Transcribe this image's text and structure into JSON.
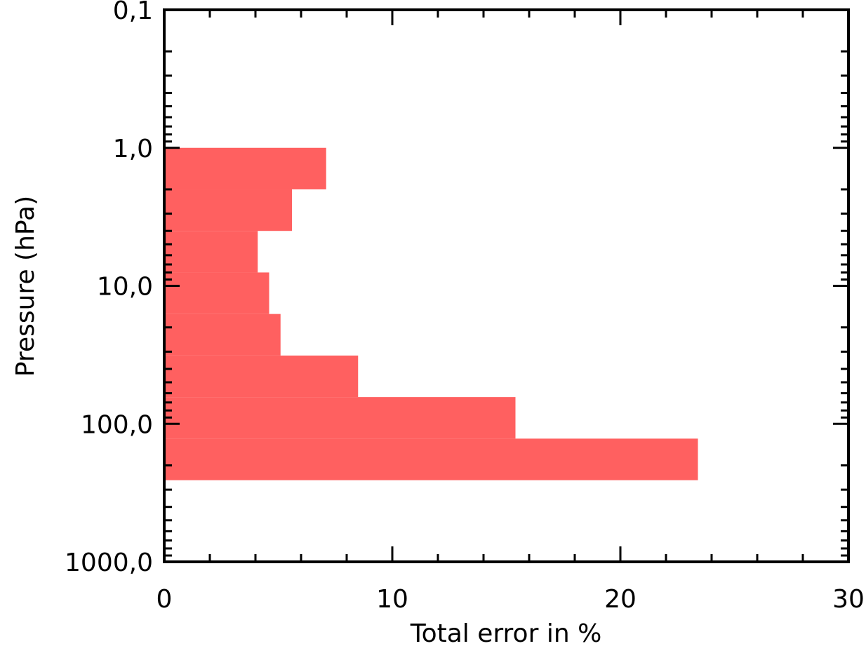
{
  "chart_data": {
    "type": "bar",
    "orientation": "horizontal",
    "xlabel": "Total error in %",
    "ylabel": "Pressure (hPa)",
    "xlim": [
      0,
      30
    ],
    "ylim": [
      1000,
      0.1
    ],
    "yscale": "log",
    "x_ticks": [
      0,
      10,
      20,
      30
    ],
    "x_tick_labels": [
      "0",
      "10",
      "20",
      "30"
    ],
    "y_ticks": [
      0.1,
      1,
      10,
      100,
      1000
    ],
    "y_tick_labels": [
      "0,1",
      "1,0",
      "10,0",
      "100,0",
      "1000,0"
    ],
    "bar_color": "#ff6060",
    "bars": [
      {
        "p_top": 1.0,
        "p_bottom": 2.0,
        "value": 7.1
      },
      {
        "p_top": 2.0,
        "p_bottom": 4.0,
        "value": 5.6
      },
      {
        "p_top": 4.0,
        "p_bottom": 8.0,
        "value": 4.1
      },
      {
        "p_top": 8.0,
        "p_bottom": 16.0,
        "value": 4.6
      },
      {
        "p_top": 16.0,
        "p_bottom": 32.0,
        "value": 5.1
      },
      {
        "p_top": 32.0,
        "p_bottom": 64.0,
        "value": 8.5
      },
      {
        "p_top": 64.0,
        "p_bottom": 128.0,
        "value": 15.4
      },
      {
        "p_top": 128.0,
        "p_bottom": 256.0,
        "value": 23.4
      }
    ],
    "grid": false,
    "legend": "none"
  }
}
